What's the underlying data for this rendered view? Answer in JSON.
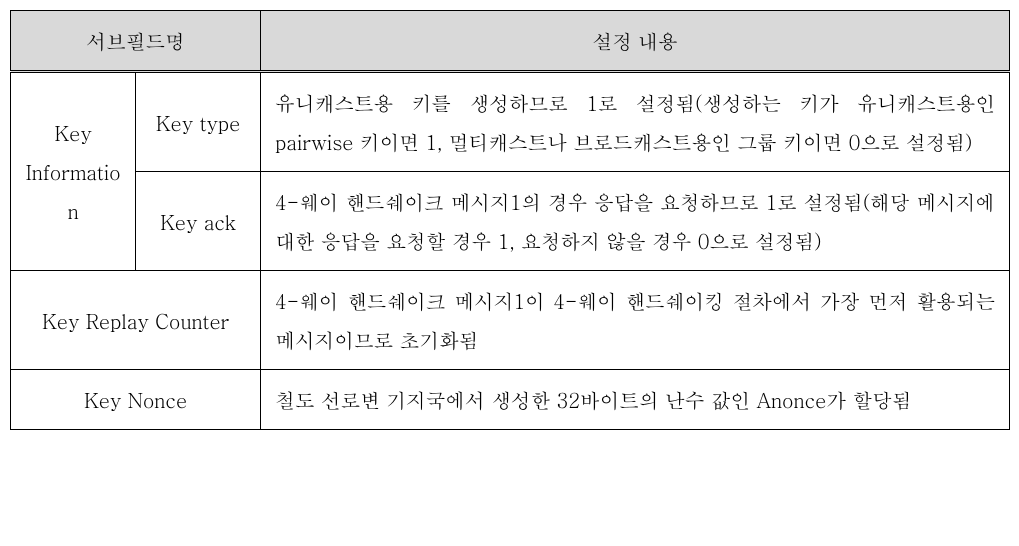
{
  "header": {
    "subfield_name": "서브필드명",
    "setting_content": "설정 내용"
  },
  "rows": {
    "key_information": {
      "label": "Key Informatio n",
      "key_type": {
        "label": "Key type",
        "content": "유니캐스트용 키를 생성하므로 1로 설정됨(생성하는 키가 유니캐스트용인 pairwise 키이면 1, 멀티캐스트나 브로드캐스트용인 그룹 키이면 0으로 설정됨)"
      },
      "key_ack": {
        "label": "Key ack",
        "content": "4-웨이 핸드쉐이크 메시지1의 경우 응답을 요청하므로 1로 설정됨(해당 메시지에 대한 응답을 요청할 경우 1, 요청하지 않을 경우 0으로 설정됨)"
      }
    },
    "key_replay_counter": {
      "label": "Key Replay Counter",
      "content": "4-웨이 핸드쉐이크 메시지1이 4-웨이 핸드쉐이킹 절차에서 가장 먼저 활용되는 메시지이므로 초기화됨"
    },
    "key_nonce": {
      "label": "Key Nonce",
      "content": "철도 선로변 기지국에서 생성한 32바이트의 난수 값인 Anonce가 할당됨"
    }
  }
}
